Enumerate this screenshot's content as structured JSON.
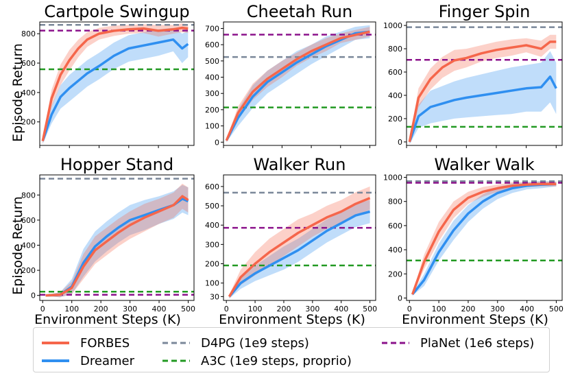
{
  "y_axis_label": "Episode Return",
  "x_axis_label": "Environment Steps (K)",
  "legend": [
    {
      "label": "FORBES",
      "color": "#f5664b",
      "style": "solid"
    },
    {
      "label": "Dreamer",
      "color": "#2f8ff0",
      "style": "solid"
    },
    {
      "label": "D4PG (1e9 steps)",
      "color": "#7a8799",
      "style": "dashed"
    },
    {
      "label": "A3C (1e9 steps, proprio)",
      "color": "#229922",
      "style": "dashed"
    },
    {
      "label": "PlaNet (1e6 steps)",
      "color": "#8b128b",
      "style": "dashed"
    }
  ],
  "chart_data": [
    {
      "type": "line",
      "title": "Cartpole Swingup",
      "xlim": [
        0,
        520
      ],
      "ylim": [
        40,
        880
      ],
      "xticks": [
        0,
        100,
        200,
        300,
        400,
        500
      ],
      "xticklabels_shown": false,
      "yticks": [
        200,
        400,
        600,
        800
      ],
      "baselines": {
        "D4PG": 860,
        "A3C": 558,
        "PlaNet": 821
      },
      "x": [
        10,
        40,
        70,
        100,
        130,
        160,
        200,
        250,
        300,
        350,
        400,
        450,
        480,
        500
      ],
      "series": [
        {
          "name": "FORBES",
          "values": [
            70,
            360,
            520,
            620,
            700,
            760,
            800,
            820,
            830,
            835,
            820,
            830,
            840,
            835
          ],
          "band": [
            20,
            60,
            70,
            70,
            60,
            50,
            40,
            35,
            30,
            30,
            40,
            30,
            30,
            30
          ]
        },
        {
          "name": "Dreamer",
          "values": [
            70,
            250,
            370,
            430,
            480,
            530,
            580,
            650,
            700,
            720,
            740,
            760,
            700,
            730
          ],
          "band": [
            20,
            60,
            80,
            90,
            90,
            90,
            90,
            90,
            90,
            90,
            90,
            80,
            100,
            90
          ]
        }
      ]
    },
    {
      "type": "line",
      "title": "Cheetah Run",
      "xlim": [
        0,
        520
      ],
      "ylim": [
        -20,
        740
      ],
      "xticks": [
        0,
        100,
        200,
        300,
        400,
        500
      ],
      "xticklabels_shown": false,
      "yticks": [
        0,
        100,
        200,
        300,
        400,
        500,
        600,
        700
      ],
      "baselines": {
        "D4PG": 524,
        "A3C": 214,
        "PlaNet": 662
      },
      "x": [
        10,
        50,
        100,
        150,
        200,
        250,
        300,
        350,
        400,
        450,
        500
      ],
      "series": [
        {
          "name": "FORBES",
          "values": [
            10,
            180,
            310,
            390,
            450,
            510,
            560,
            600,
            640,
            660,
            680
          ],
          "band": [
            10,
            40,
            50,
            50,
            50,
            40,
            40,
            40,
            30,
            30,
            30
          ]
        },
        {
          "name": "Dreamer",
          "values": [
            10,
            150,
            280,
            370,
            430,
            490,
            540,
            590,
            630,
            670,
            680
          ],
          "band": [
            10,
            50,
            70,
            70,
            70,
            70,
            60,
            60,
            50,
            40,
            40
          ]
        }
      ]
    },
    {
      "type": "line",
      "title": "Finger Spin",
      "xlim": [
        0,
        520
      ],
      "ylim": [
        -30,
        1030
      ],
      "xticks": [
        0,
        100,
        200,
        300,
        400,
        500
      ],
      "xticklabels_shown": false,
      "yticks": [
        0,
        200,
        400,
        600,
        800,
        1000
      ],
      "baselines": {
        "D4PG": 985,
        "A3C": 130,
        "PlaNet": 705
      },
      "x": [
        10,
        40,
        80,
        120,
        160,
        200,
        250,
        300,
        350,
        400,
        450,
        480,
        500
      ],
      "series": [
        {
          "name": "FORBES",
          "values": [
            0,
            380,
            540,
            640,
            700,
            720,
            760,
            790,
            810,
            830,
            800,
            860,
            860
          ],
          "band": [
            20,
            80,
            90,
            90,
            90,
            80,
            70,
            70,
            70,
            60,
            70,
            60,
            60
          ]
        },
        {
          "name": "Dreamer",
          "values": [
            0,
            220,
            300,
            330,
            360,
            380,
            400,
            420,
            440,
            460,
            470,
            560,
            460
          ],
          "band": [
            20,
            100,
            140,
            150,
            160,
            170,
            180,
            190,
            200,
            200,
            210,
            220,
            220
          ]
        }
      ]
    },
    {
      "type": "line",
      "title": "Hopper Stand",
      "xlim": [
        -10,
        520
      ],
      "ylim": [
        -40,
        960
      ],
      "xticks": [
        0,
        100,
        200,
        300,
        400,
        500
      ],
      "xticklabels_shown": true,
      "yticks": [
        0,
        200,
        400,
        600,
        800
      ],
      "baselines": {
        "D4PG": 930,
        "A3C": 30,
        "PlaNet": 5
      },
      "x": [
        10,
        60,
        100,
        140,
        180,
        220,
        260,
        300,
        350,
        400,
        450,
        480,
        500
      ],
      "series": [
        {
          "name": "FORBES",
          "values": [
            0,
            5,
            60,
            230,
            360,
            430,
            500,
            560,
            620,
            670,
            720,
            790,
            760
          ],
          "band": [
            5,
            20,
            50,
            100,
            110,
            110,
            110,
            110,
            110,
            100,
            100,
            100,
            100
          ]
        },
        {
          "name": "Dreamer",
          "values": [
            0,
            5,
            70,
            260,
            390,
            470,
            540,
            600,
            640,
            680,
            720,
            770,
            750
          ],
          "band": [
            5,
            20,
            60,
            110,
            120,
            120,
            120,
            120,
            120,
            110,
            110,
            110,
            110
          ]
        }
      ]
    },
    {
      "type": "line",
      "title": "Walker Run",
      "xlim": [
        -10,
        520
      ],
      "ylim": [
        10,
        660
      ],
      "xticks": [
        0,
        100,
        200,
        300,
        400,
        500
      ],
      "xticklabels_shown": true,
      "yticks": [
        30,
        100,
        200,
        300,
        400,
        500,
        600
      ],
      "baselines": {
        "D4PG": 568,
        "A3C": 191,
        "PlaNet": 386
      },
      "x": [
        10,
        50,
        100,
        150,
        200,
        250,
        300,
        350,
        400,
        450,
        500
      ],
      "series": [
        {
          "name": "FORBES",
          "values": [
            30,
            130,
            200,
            260,
            310,
            360,
            400,
            440,
            470,
            510,
            540
          ],
          "band": [
            10,
            40,
            60,
            70,
            70,
            70,
            60,
            60,
            60,
            60,
            60
          ]
        },
        {
          "name": "Dreamer",
          "values": [
            30,
            100,
            150,
            190,
            230,
            270,
            320,
            370,
            410,
            450,
            470
          ],
          "band": [
            10,
            30,
            40,
            50,
            60,
            60,
            60,
            60,
            60,
            60,
            60
          ]
        }
      ]
    },
    {
      "type": "line",
      "title": "Walker Walk",
      "xlim": [
        -10,
        520
      ],
      "ylim": [
        -20,
        1020
      ],
      "xticks": [
        0,
        100,
        200,
        300,
        400,
        500
      ],
      "xticklabels_shown": true,
      "yticks": [
        0,
        200,
        400,
        600,
        800,
        1000
      ],
      "baselines": {
        "D4PG": 968,
        "A3C": 311,
        "PlaNet": 955
      },
      "x": [
        10,
        50,
        100,
        150,
        200,
        250,
        300,
        350,
        400,
        450,
        500
      ],
      "series": [
        {
          "name": "FORBES",
          "values": [
            30,
            300,
            550,
            730,
            830,
            880,
            910,
            930,
            940,
            945,
            945
          ],
          "band": [
            10,
            60,
            80,
            70,
            50,
            40,
            30,
            30,
            20,
            20,
            20
          ]
        },
        {
          "name": "Dreamer",
          "values": [
            30,
            150,
            380,
            560,
            700,
            800,
            870,
            910,
            930,
            940,
            945
          ],
          "band": [
            10,
            50,
            70,
            80,
            70,
            60,
            50,
            40,
            30,
            30,
            20
          ]
        }
      ]
    }
  ]
}
